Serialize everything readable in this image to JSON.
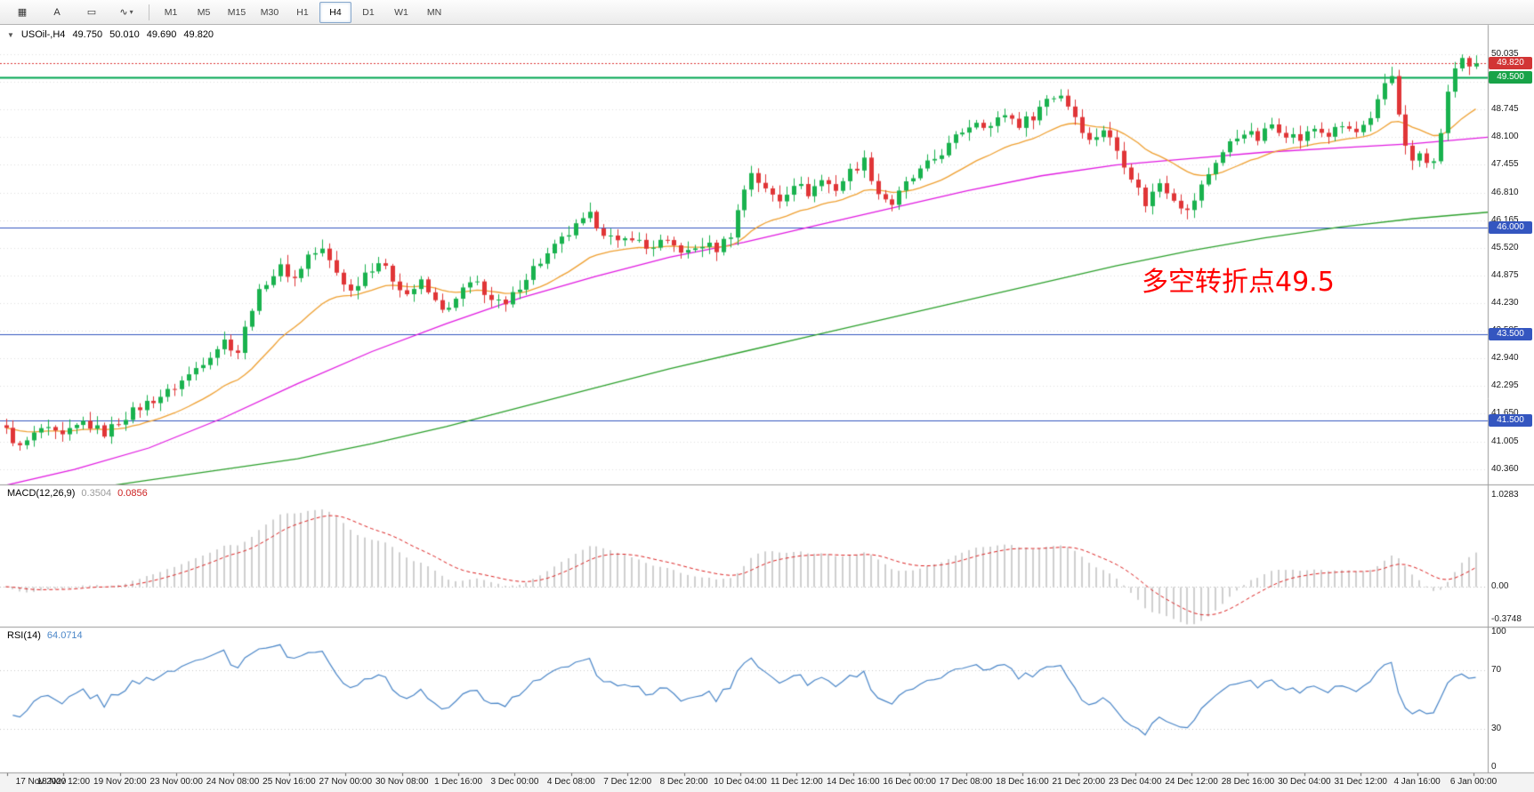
{
  "toolbar": {
    "icons": {
      "chart": "▦",
      "text": "A",
      "shapes": "▭",
      "polyline": "∿",
      "caret": "▾"
    },
    "timeframes": [
      {
        "label": "M1",
        "active": false
      },
      {
        "label": "M5",
        "active": false
      },
      {
        "label": "M15",
        "active": false
      },
      {
        "label": "M30",
        "active": false
      },
      {
        "label": "H1",
        "active": false
      },
      {
        "label": "H4",
        "active": true
      },
      {
        "label": "D1",
        "active": false
      },
      {
        "label": "W1",
        "active": false
      },
      {
        "label": "MN",
        "active": false
      }
    ]
  },
  "chart": {
    "symbol_row": {
      "collapse_glyph": "▼",
      "symbol": "USOil-,H4",
      "open": "49.750",
      "high": "50.010",
      "low": "49.690",
      "close": "49.820"
    },
    "annotation": {
      "text": "多空转折点49.5",
      "color": "#ff0000"
    }
  },
  "chart_data": {
    "type": "candlestick",
    "symbol": "USOil-",
    "timeframe": "H4",
    "n_candles": 210,
    "price_range": [
      40.0,
      50.72
    ],
    "last_candle": {
      "open": 49.75,
      "high": 50.01,
      "low": 49.69,
      "close": 49.82
    },
    "current_price": 49.82,
    "colors": {
      "up": "#19b24e",
      "down": "#e03537",
      "background": "#ffffff",
      "grid": "#e0e0e0",
      "axis_border": "#9a9a9a",
      "current_price_line": "#dd3535"
    },
    "close_anchors": [
      [
        0,
        41.25
      ],
      [
        2,
        40.85
      ],
      [
        5,
        41.3
      ],
      [
        8,
        41.1
      ],
      [
        11,
        41.45
      ],
      [
        14,
        41.2
      ],
      [
        17,
        41.6
      ],
      [
        20,
        41.9
      ],
      [
        23,
        42.15
      ],
      [
        26,
        42.55
      ],
      [
        29,
        43.05
      ],
      [
        31,
        43.35
      ],
      [
        33,
        43.1
      ],
      [
        35,
        44.15
      ],
      [
        37,
        44.75
      ],
      [
        39,
        45.05
      ],
      [
        41,
        44.8
      ],
      [
        43,
        45.35
      ],
      [
        45,
        45.45
      ],
      [
        47,
        44.95
      ],
      [
        49,
        44.5
      ],
      [
        51,
        44.95
      ],
      [
        53,
        45.2
      ],
      [
        55,
        44.8
      ],
      [
        57,
        44.45
      ],
      [
        59,
        44.7
      ],
      [
        61,
        44.25
      ],
      [
        63,
        44.05
      ],
      [
        65,
        44.55
      ],
      [
        67,
        44.7
      ],
      [
        69,
        44.3
      ],
      [
        71,
        44.15
      ],
      [
        73,
        44.65
      ],
      [
        75,
        45.05
      ],
      [
        77,
        45.35
      ],
      [
        79,
        45.7
      ],
      [
        81,
        46.0
      ],
      [
        83,
        46.25
      ],
      [
        85,
        45.9
      ],
      [
        87,
        45.6
      ],
      [
        89,
        45.8
      ],
      [
        91,
        45.5
      ],
      [
        93,
        45.65
      ],
      [
        95,
        45.55
      ],
      [
        97,
        45.4
      ],
      [
        99,
        45.6
      ],
      [
        101,
        45.5
      ],
      [
        103,
        45.85
      ],
      [
        105,
        46.9
      ],
      [
        106,
        47.3
      ],
      [
        108,
        46.85
      ],
      [
        110,
        46.65
      ],
      [
        112,
        47.05
      ],
      [
        114,
        46.8
      ],
      [
        116,
        47.1
      ],
      [
        118,
        46.9
      ],
      [
        120,
        47.3
      ],
      [
        122,
        47.55
      ],
      [
        124,
        46.8
      ],
      [
        126,
        46.55
      ],
      [
        128,
        47.0
      ],
      [
        130,
        47.3
      ],
      [
        132,
        47.6
      ],
      [
        134,
        47.9
      ],
      [
        136,
        48.25
      ],
      [
        138,
        48.5
      ],
      [
        140,
        48.35
      ],
      [
        142,
        48.65
      ],
      [
        144,
        48.4
      ],
      [
        146,
        48.6
      ],
      [
        148,
        49.0
      ],
      [
        150,
        49.1
      ],
      [
        152,
        48.6
      ],
      [
        154,
        48.0
      ],
      [
        156,
        48.3
      ],
      [
        158,
        47.8
      ],
      [
        160,
        47.2
      ],
      [
        162,
        46.55
      ],
      [
        164,
        47.05
      ],
      [
        166,
        46.7
      ],
      [
        168,
        46.35
      ],
      [
        170,
        46.95
      ],
      [
        172,
        47.55
      ],
      [
        174,
        47.95
      ],
      [
        176,
        48.25
      ],
      [
        178,
        48.05
      ],
      [
        180,
        48.4
      ],
      [
        182,
        48.2
      ],
      [
        184,
        48.05
      ],
      [
        186,
        48.3
      ],
      [
        188,
        48.15
      ],
      [
        190,
        48.35
      ],
      [
        192,
        48.2
      ],
      [
        194,
        48.45
      ],
      [
        196,
        49.35
      ],
      [
        197,
        49.55
      ],
      [
        198,
        48.7
      ],
      [
        199,
        47.85
      ],
      [
        200,
        47.55
      ],
      [
        201,
        47.7
      ],
      [
        202,
        47.45
      ],
      [
        203,
        47.6
      ],
      [
        204,
        48.1
      ],
      [
        205,
        49.2
      ],
      [
        206,
        49.7
      ],
      [
        207,
        49.9
      ],
      [
        208,
        49.75
      ],
      [
        209,
        49.82
      ]
    ],
    "horizontal_lines": [
      {
        "price": 49.5,
        "color": "#00a651",
        "width": 2,
        "label": "49.500"
      },
      {
        "price": 46.0,
        "color": "#3456c0",
        "width": 1,
        "label": "46.000"
      },
      {
        "price": 43.5,
        "color": "#3456c0",
        "width": 1,
        "label": "43.500"
      },
      {
        "price": 41.5,
        "color": "#3456c0",
        "width": 1,
        "label": "41.500"
      }
    ],
    "moving_averages": [
      {
        "name": "ma-fast",
        "type": "ema",
        "period": 20,
        "color": "#efa031"
      },
      {
        "name": "ma-mid",
        "color": "#e11ae1",
        "anchors": [
          [
            0,
            39.95
          ],
          [
            0.05,
            40.35
          ],
          [
            0.1,
            40.85
          ],
          [
            0.15,
            41.55
          ],
          [
            0.2,
            42.35
          ],
          [
            0.25,
            43.1
          ],
          [
            0.3,
            43.75
          ],
          [
            0.35,
            44.35
          ],
          [
            0.4,
            44.85
          ],
          [
            0.45,
            45.3
          ],
          [
            0.5,
            45.65
          ],
          [
            0.55,
            46.05
          ],
          [
            0.6,
            46.45
          ],
          [
            0.65,
            46.85
          ],
          [
            0.7,
            47.2
          ],
          [
            0.75,
            47.45
          ],
          [
            0.8,
            47.6
          ],
          [
            0.85,
            47.75
          ],
          [
            0.9,
            47.85
          ],
          [
            0.95,
            47.95
          ],
          [
            1,
            48.1
          ]
        ]
      },
      {
        "name": "ma-slow",
        "color": "#2ca02c",
        "anchors": [
          [
            0,
            39.55
          ],
          [
            0.05,
            39.85
          ],
          [
            0.1,
            40.1
          ],
          [
            0.15,
            40.35
          ],
          [
            0.2,
            40.6
          ],
          [
            0.25,
            40.95
          ],
          [
            0.3,
            41.35
          ],
          [
            0.35,
            41.8
          ],
          [
            0.4,
            42.25
          ],
          [
            0.45,
            42.7
          ],
          [
            0.5,
            43.1
          ],
          [
            0.55,
            43.5
          ],
          [
            0.6,
            43.9
          ],
          [
            0.65,
            44.3
          ],
          [
            0.7,
            44.7
          ],
          [
            0.75,
            45.1
          ],
          [
            0.8,
            45.45
          ],
          [
            0.85,
            45.75
          ],
          [
            0.9,
            46.0
          ],
          [
            0.95,
            46.2
          ],
          [
            1,
            46.35
          ]
        ]
      }
    ],
    "macd": {
      "label": "MACD(12,26,9)",
      "fast": 12,
      "slow": 26,
      "signal": 9,
      "display_values": [
        "0.3504",
        "0.0856"
      ],
      "range": [
        -0.45,
        1.15
      ],
      "histogram_color": "#cfcfcf",
      "signal_color": "#dd2222",
      "scale_labels": [
        {
          "label": "1.0283",
          "value": 1.0283
        },
        {
          "label": "0.00",
          "value": 0
        },
        {
          "label": "-0.3748",
          "value": -0.3748
        }
      ]
    },
    "rsi": {
      "label": "RSI(14)",
      "period": 14,
      "display_value": "64.0714",
      "line_color": "#4a86c8",
      "levels": [
        70,
        30
      ],
      "scale_labels": [
        {
          "label": "100",
          "value": 100
        },
        {
          "label": "70",
          "value": 70
        },
        {
          "label": "30",
          "value": 30
        },
        {
          "label": "0",
          "value": 0
        }
      ]
    },
    "price_ticks": [
      "50.035",
      "49.390",
      "48.745",
      "48.100",
      "47.455",
      "46.810",
      "46.165",
      "45.520",
      "44.875",
      "44.230",
      "43.585",
      "42.940",
      "42.295",
      "41.650",
      "41.005",
      "40.360"
    ],
    "price_badges": [
      {
        "label": "49.820",
        "price": 49.82,
        "bg": "#d23535"
      },
      {
        "label": "49.500",
        "price": 49.5,
        "bg": "#18a348"
      },
      {
        "label": "46.000",
        "price": 46.0,
        "bg": "#3456c0"
      },
      {
        "label": "43.500",
        "price": 43.5,
        "bg": "#3456c0"
      },
      {
        "label": "41.500",
        "price": 41.5,
        "bg": "#3456c0"
      }
    ],
    "x_labels": [
      "17 Nov 2020",
      "18 Nov 12:00",
      "19 Nov 20:00",
      "23 Nov 00:00",
      "24 Nov 08:00",
      "25 Nov 16:00",
      "27 Nov 00:00",
      "30 Nov 08:00",
      "1 Dec 16:00",
      "3 Dec 00:00",
      "4 Dec 08:00",
      "7 Dec 12:00",
      "8 Dec 20:00",
      "10 Dec 04:00",
      "11 Dec 12:00",
      "14 Dec 16:00",
      "16 Dec 00:00",
      "17 Dec 08:00",
      "18 Dec 16:00",
      "21 Dec 20:00",
      "23 Dec 04:00",
      "24 Dec 12:00",
      "28 Dec 16:00",
      "30 Dec 04:00",
      "31 Dec 12:00",
      "4 Jan 16:00",
      "6 Jan 00:00"
    ]
  }
}
